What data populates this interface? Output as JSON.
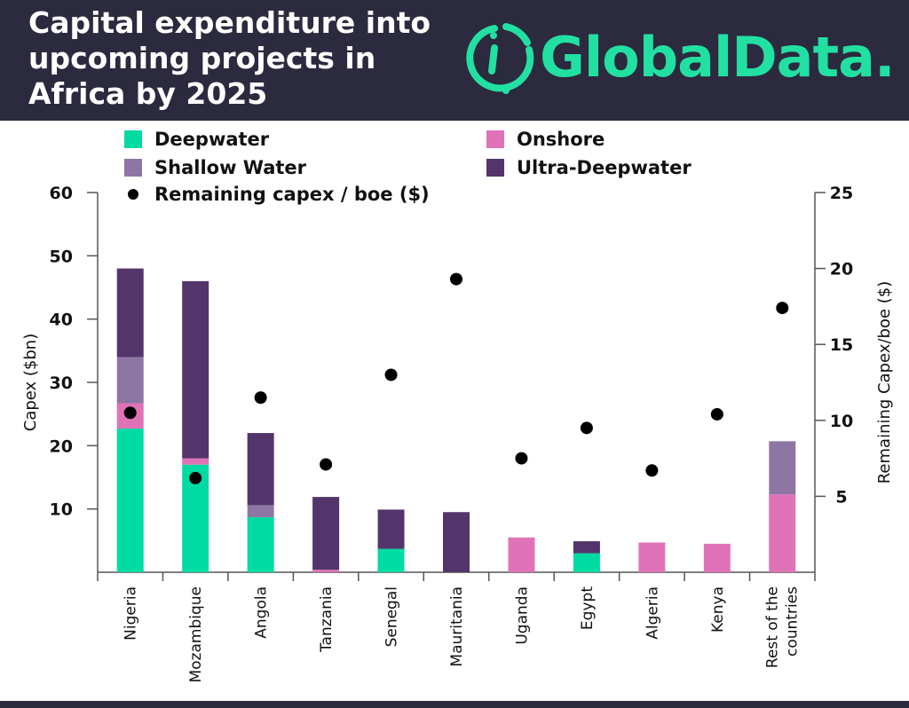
{
  "header": {
    "title": "Capital expenditure into\nupcoming projects in\nAfrica by 2025",
    "logo_text": "GlobalData.",
    "logo_color": "#22e0a2",
    "background": "#2b2a3e"
  },
  "chart_data": {
    "type": "bar",
    "stacked": true,
    "categories": [
      "Nigeria",
      "Mozambique",
      "Angola",
      "Tanzania",
      "Senegal",
      "Mauritania",
      "Uganda",
      "Egypt",
      "Algeria",
      "Kenya",
      "Rest of the countries"
    ],
    "series": [
      {
        "name": "Deepwater",
        "color": "#00dba3",
        "values": [
          22.7,
          17.0,
          8.7,
          0,
          3.7,
          0,
          0,
          3.0,
          0,
          0,
          0
        ]
      },
      {
        "name": "Onshore",
        "color": "#e072b8",
        "values": [
          4.0,
          1.0,
          0,
          0.4,
          0,
          0,
          5.5,
          0,
          4.7,
          4.5,
          12.3
        ]
      },
      {
        "name": "Shallow Water",
        "color": "#8e76a4",
        "values": [
          7.3,
          0,
          1.9,
          0,
          0,
          0,
          0,
          0,
          0,
          0,
          8.4
        ]
      },
      {
        "name": "Ultra-Deepwater",
        "color": "#54356b",
        "values": [
          14.0,
          28.0,
          11.4,
          11.5,
          6.2,
          9.5,
          0,
          1.9,
          0,
          0,
          0
        ]
      }
    ],
    "scatter": {
      "name": "Remaining capex / boe ($)",
      "color": "#000000",
      "values": [
        10.5,
        6.2,
        11.5,
        7.1,
        13.0,
        19.3,
        7.5,
        9.5,
        6.7,
        10.4,
        17.4
      ]
    },
    "legend_order": [
      "Deepwater",
      "Onshore",
      "Shallow Water",
      "Ultra-Deepwater",
      "Remaining capex / boe ($)"
    ],
    "legend_position": "top",
    "ylabel": "Capex ($bn)",
    "y2label": "Remaining Capex/boe ($)",
    "ylim": [
      0,
      60
    ],
    "y2lim": [
      0,
      25
    ],
    "yticks": [
      10,
      20,
      30,
      40,
      50,
      60
    ],
    "y2ticks": [
      5,
      10,
      15,
      20,
      25
    ],
    "grid": false
  }
}
